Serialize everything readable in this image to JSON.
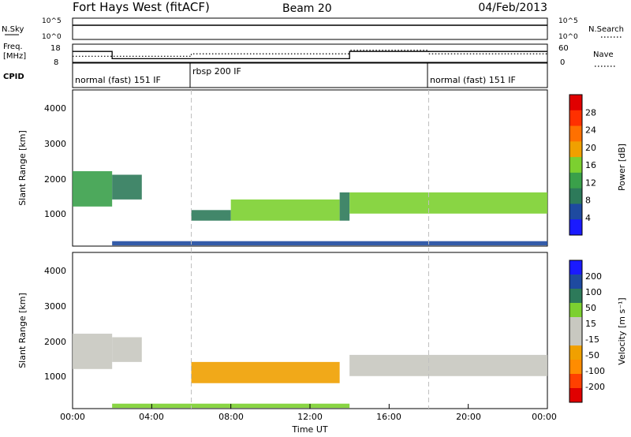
{
  "header": {
    "station": "Fort Hays West (fitACF)",
    "beam": "Beam 20",
    "date": "04/Feb/2013"
  },
  "nsky_panel": {
    "left_label": "N.Sky",
    "right_label": "N.Search",
    "ticks_left": [
      "10^5",
      "10^0"
    ],
    "ticks_right": [
      "10^5",
      "10^0"
    ]
  },
  "freq_panel": {
    "left_label_1": "Freq.",
    "left_label_2": "[MHz]",
    "right_label": "Nave",
    "ticks_left": [
      "18",
      "8"
    ],
    "ticks_right": [
      "60",
      "0"
    ],
    "freq_steps": [
      {
        "t0": 0.0,
        "t1": 2.0,
        "freq_mhz": 14
      },
      {
        "t0": 2.0,
        "t1": 14.0,
        "freq_mhz": 10
      },
      {
        "t0": 14.0,
        "t1": 24.0,
        "freq_mhz": 14
      }
    ],
    "nave_steps": [
      {
        "t0": 0.0,
        "t1": 6.0,
        "nave": 20
      },
      {
        "t0": 6.0,
        "t1": 14.0,
        "nave": 28
      },
      {
        "t0": 14.0,
        "t1": 18.0,
        "nave": 40
      },
      {
        "t0": 18.0,
        "t1": 24.0,
        "nave": 28
      }
    ]
  },
  "cpid_panel": {
    "label": "CPID",
    "segments": [
      {
        "name": "normal (fast) 151 IF",
        "t0": 0.0
      },
      {
        "name": "rbsp 200 IF",
        "t0": 6.0
      },
      {
        "name": "normal (fast) 151 IF",
        "t0": 18.0
      }
    ]
  },
  "colors": {
    "power": [
      "#1a1aff",
      "#1e4aa0",
      "#2d7a5a",
      "#3aa04a",
      "#7cd030",
      "#f0a000",
      "#ff7000",
      "#ff3000",
      "#e00000"
    ],
    "velocity": [
      "#e00000",
      "#ff4000",
      "#ff8c00",
      "#f0a000",
      "#c8c8c0",
      "#c8c8c0",
      "#7cd030",
      "#2d7a5a",
      "#1e4aa0",
      "#1a1aff"
    ]
  },
  "chart_data": [
    {
      "type": "heatmap",
      "title": "Power",
      "xlabel": "",
      "ylabel": "Slant Range [km]",
      "colorbar_label": "Power [dB]",
      "colorbar_ticks": [
        "28",
        "24",
        "20",
        "16",
        "12",
        "8",
        "4"
      ],
      "xlim": [
        0,
        24
      ],
      "ylim": [
        180,
        4600
      ],
      "yticks": [
        "1000",
        "2000",
        "3000",
        "4000"
      ],
      "bands": [
        {
          "t0": 0.0,
          "t1": 2.0,
          "r_lo": 1300,
          "r_hi": 2300,
          "power": 14
        },
        {
          "t0": 2.0,
          "t1": 3.5,
          "r_lo": 1500,
          "r_hi": 2200,
          "power": 8
        },
        {
          "t0": 6.0,
          "t1": 8.0,
          "r_lo": 900,
          "r_hi": 1200,
          "power": 10
        },
        {
          "t0": 8.0,
          "t1": 13.5,
          "r_lo": 900,
          "r_hi": 1500,
          "power": 18
        },
        {
          "t0": 13.5,
          "t1": 14.0,
          "r_lo": 900,
          "r_hi": 1700,
          "power": 10
        },
        {
          "t0": 14.0,
          "t1": 24.0,
          "r_lo": 1100,
          "r_hi": 1700,
          "power": 18
        },
        {
          "t0": 2.0,
          "t1": 24.0,
          "r_lo": 200,
          "r_hi": 320,
          "power": 6
        }
      ]
    },
    {
      "type": "heatmap",
      "title": "Velocity",
      "xlabel": "Time UT",
      "ylabel": "Slant Range [km]",
      "colorbar_label": "Velocity [m s⁻¹]",
      "colorbar_ticks": [
        "200",
        "100",
        "50",
        "15",
        "-15",
        "-50",
        "-100",
        "-200"
      ],
      "xlim": [
        0,
        24
      ],
      "ylim": [
        180,
        4600
      ],
      "yticks": [
        "1000",
        "2000",
        "3000",
        "4000"
      ],
      "xticks": [
        "00:00",
        "04:00",
        "08:00",
        "12:00",
        "16:00",
        "20:00",
        "00:00"
      ],
      "bands": [
        {
          "t0": 0.0,
          "t1": 2.0,
          "r_lo": 1300,
          "r_hi": 2300,
          "velocity": 0
        },
        {
          "t0": 2.0,
          "t1": 3.5,
          "r_lo": 1500,
          "r_hi": 2200,
          "velocity": 0
        },
        {
          "t0": 6.0,
          "t1": 13.5,
          "r_lo": 900,
          "r_hi": 1500,
          "velocity": -30
        },
        {
          "t0": 14.0,
          "t1": 24.0,
          "r_lo": 1100,
          "r_hi": 1700,
          "velocity": 0
        },
        {
          "t0": 2.0,
          "t1": 14.0,
          "r_lo": 200,
          "r_hi": 320,
          "velocity": 20
        }
      ]
    }
  ],
  "xaxis": {
    "label": "Time UT",
    "ticks": [
      "00:00",
      "04:00",
      "08:00",
      "12:00",
      "16:00",
      "20:00",
      "00:00"
    ]
  }
}
